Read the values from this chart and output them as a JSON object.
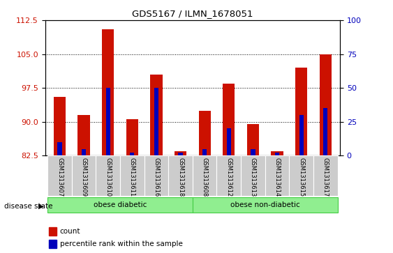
{
  "title": "GDS5167 / ILMN_1678051",
  "samples": [
    "GSM1313607",
    "GSM1313609",
    "GSM1313610",
    "GSM1313611",
    "GSM1313616",
    "GSM1313618",
    "GSM1313608",
    "GSM1313612",
    "GSM1313613",
    "GSM1313614",
    "GSM1313615",
    "GSM1313617"
  ],
  "count_values": [
    95.5,
    91.5,
    110.5,
    90.5,
    100.5,
    83.5,
    92.5,
    98.5,
    89.5,
    83.5,
    102.0,
    105.0
  ],
  "percentile_values": [
    10,
    5,
    50,
    2,
    50,
    2,
    5,
    20,
    5,
    2,
    30,
    35
  ],
  "baseline": 82.5,
  "ylim_left": [
    82.5,
    112.5
  ],
  "ylim_right": [
    0,
    100
  ],
  "yticks_left": [
    82.5,
    90,
    97.5,
    105,
    112.5
  ],
  "yticks_right": [
    0,
    25,
    50,
    75,
    100
  ],
  "bar_width": 0.5,
  "blue_bar_width": 0.18,
  "bar_color_red": "#CC1100",
  "bar_color_blue": "#0000BB",
  "tick_label_bg": "#cccccc",
  "group1_label": "obese diabetic",
  "group2_label": "obese non-diabetic",
  "group_color": "#90EE90",
  "group_edge_color": "#44cc44",
  "group_boundary": 6,
  "disease_state_label": "disease state",
  "legend_count": "count",
  "legend_percentile": "percentile rank within the sample",
  "grid_yticks": [
    90,
    97.5,
    105
  ]
}
